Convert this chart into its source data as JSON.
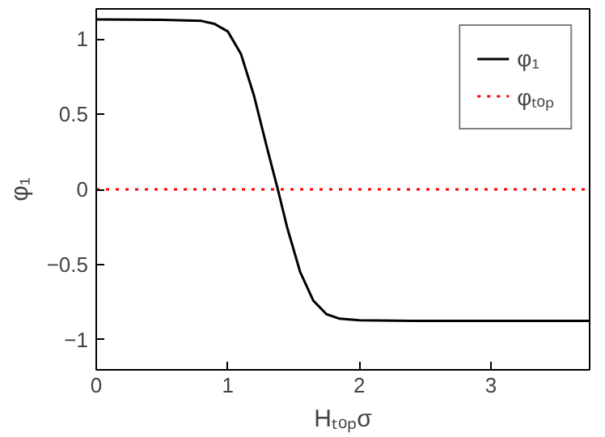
{
  "chart_data": {
    "type": "line",
    "xlabel": "Hₜₒₚσ",
    "ylabel": "φ₁",
    "xlim": [
      0,
      3.75
    ],
    "ylim": [
      -1.2,
      1.2
    ],
    "xticks": [
      0,
      1,
      2,
      3
    ],
    "yticks": [
      -1,
      -0.5,
      0,
      0.5,
      1
    ],
    "grid": false,
    "legend": "top right",
    "series": [
      {
        "name": "φ₁",
        "color": "#000000",
        "line_style": "solid",
        "x": [
          0,
          0.5,
          0.8,
          0.9,
          1.0,
          1.1,
          1.2,
          1.3,
          1.38,
          1.45,
          1.55,
          1.65,
          1.75,
          1.85,
          2.0,
          2.5,
          3.0,
          3.75
        ],
        "values": [
          1.13,
          1.128,
          1.12,
          1.1,
          1.05,
          0.9,
          0.62,
          0.27,
          0,
          -0.25,
          -0.55,
          -0.74,
          -0.83,
          -0.86,
          -0.87,
          -0.875,
          -0.875,
          -0.875
        ]
      },
      {
        "name": "φₜₒₚ",
        "color": "#ff0000",
        "line_style": "dotted",
        "x": [
          0,
          3.75
        ],
        "values": [
          0,
          0
        ]
      }
    ]
  }
}
